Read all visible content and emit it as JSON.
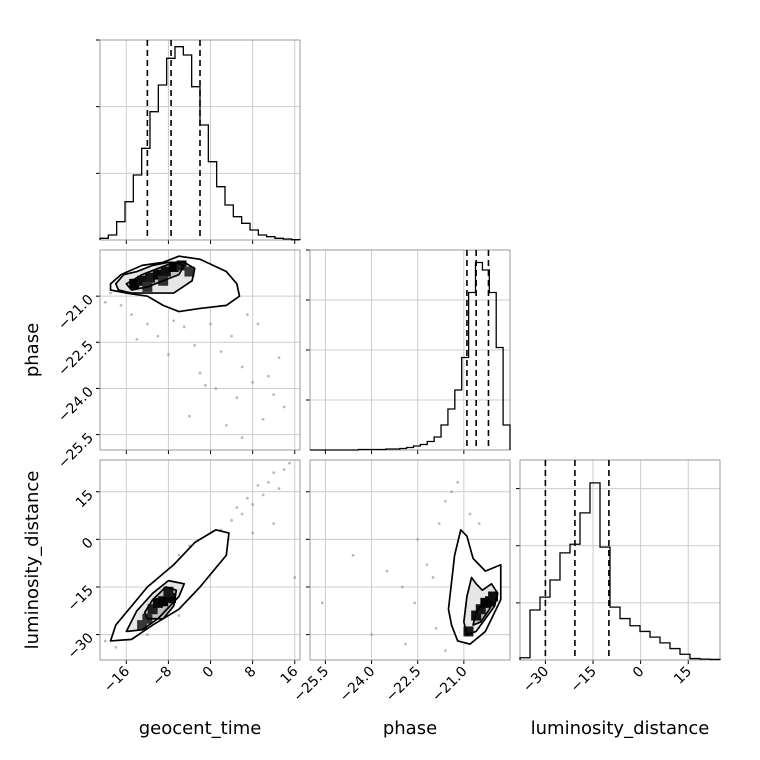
{
  "chart_data": {
    "type": "corner",
    "parameters": [
      "geocent_time",
      "phase",
      "luminosity_distance"
    ],
    "xlabels": [
      "geocent_time",
      "phase",
      "luminosity_distance"
    ],
    "ylabels": [
      "",
      "phase",
      "luminosity_distance"
    ],
    "ranges": {
      "geocent_time": [
        -21.0,
        17.0
      ],
      "phase": [
        -26.0,
        -19.5
      ],
      "luminosity_distance": [
        -38.0,
        25.0
      ]
    },
    "ticks": {
      "geocent_time": [
        -16,
        -8,
        0,
        8,
        16
      ],
      "phase": [
        -25.5,
        -24.0,
        -22.5,
        -21.0
      ],
      "luminosity_distance": [
        -30,
        -15,
        0,
        15
      ]
    },
    "tick_labels": {
      "geocent_time": [
        "−16",
        "−8",
        "0",
        "8",
        "16"
      ],
      "phase": [
        "−25.5",
        "−24.0",
        "−22.5",
        "−21.0"
      ],
      "luminosity_distance": [
        "−30",
        "−15",
        "0",
        "15"
      ]
    },
    "quantiles": {
      "geocent_time": [
        -12.0,
        -7.5,
        -2.0
      ],
      "phase": [
        -20.9,
        -20.6,
        -20.2
      ],
      "luminosity_distance": [
        -30.0,
        -20.7,
        -10.0
      ]
    },
    "histograms": [
      {
        "parameter": "geocent_time",
        "counts": [
          0.5,
          1.5,
          5.5,
          11.5,
          19.5,
          27.5,
          38.5,
          46.5,
          54.5,
          58.0,
          55.5,
          46.0,
          34.5,
          23.5,
          16.0,
          10.5,
          7.0,
          5.0,
          3.0,
          1.5,
          1.0,
          0.5,
          0.3,
          0.1
        ],
        "ylim": [
          0,
          60
        ],
        "yticks": [
          20,
          40,
          60
        ]
      },
      {
        "parameter": "phase",
        "counts": [
          0.0,
          0.0,
          0.0,
          0.0,
          0.0,
          0.0,
          0.0,
          0.1,
          0.1,
          0.1,
          0.1,
          0.2,
          0.2,
          0.3,
          0.5,
          0.8,
          1.1,
          1.7,
          2.6,
          5.0,
          8.2,
          12.0,
          18.5,
          31.5,
          37.5,
          36.0,
          31.5,
          20.5,
          5.0
        ],
        "ylim": [
          0,
          40
        ],
        "yticks": [
          10,
          20,
          30,
          40
        ]
      },
      {
        "parameter": "luminosity_distance",
        "counts": [
          0.8,
          17.5,
          22.0,
          28.0,
          37.5,
          40.5,
          51.5,
          62.0,
          39.5,
          18.5,
          14.5,
          12.0,
          10.0,
          8.0,
          6.0,
          4.0,
          2.0,
          0.5,
          0.3,
          0.2
        ],
        "ylim": [
          0,
          70
        ],
        "yticks": [
          20,
          40,
          60
        ]
      }
    ],
    "contours": [
      {
        "x": "geocent_time",
        "y": "phase",
        "levels": [
          [
            [
              -19.0,
              -20.6
            ],
            [
              -17.0,
              -20.3
            ],
            [
              -13.0,
              -20.0
            ],
            [
              -9.0,
              -19.9
            ],
            [
              -6.0,
              -19.7
            ],
            [
              -2.0,
              -19.8
            ],
            [
              3.0,
              -20.2
            ],
            [
              5.0,
              -20.6
            ],
            [
              5.5,
              -21.0
            ],
            [
              3.0,
              -21.3
            ],
            [
              -2.0,
              -21.4
            ],
            [
              -6.0,
              -21.5
            ],
            [
              -9.0,
              -21.3
            ],
            [
              -12.0,
              -21.0
            ],
            [
              -16.0,
              -20.9
            ],
            [
              -19.0,
              -20.8
            ]
          ],
          [
            [
              -18.0,
              -20.6
            ],
            [
              -16.5,
              -20.3
            ],
            [
              -14.0,
              -20.2
            ],
            [
              -11.0,
              -20.0
            ],
            [
              -8.0,
              -19.9
            ],
            [
              -5.0,
              -19.9
            ],
            [
              -3.0,
              -20.1
            ],
            [
              -3.5,
              -20.5
            ],
            [
              -7.0,
              -20.9
            ],
            [
              -11.0,
              -20.9
            ],
            [
              -15.0,
              -20.9
            ],
            [
              -17.5,
              -20.8
            ]
          ],
          [
            [
              -16.0,
              -20.6
            ],
            [
              -13.0,
              -20.3
            ],
            [
              -10.0,
              -20.1
            ],
            [
              -7.0,
              -19.9
            ],
            [
              -5.0,
              -20.0
            ],
            [
              -6.0,
              -20.3
            ],
            [
              -9.0,
              -20.5
            ],
            [
              -12.0,
              -20.7
            ],
            [
              -15.0,
              -20.8
            ]
          ]
        ],
        "hist": [
          [
            -14.5,
            -20.6,
            1.0
          ],
          [
            -13.0,
            -20.5,
            0.8
          ],
          [
            -11.5,
            -20.4,
            0.7
          ],
          [
            -10.0,
            -20.3,
            0.9
          ],
          [
            -8.5,
            -20.2,
            0.8
          ],
          [
            -7.0,
            -20.05,
            1.0
          ],
          [
            -5.5,
            -20.0,
            0.6
          ],
          [
            -12.0,
            -20.7,
            0.4
          ],
          [
            -9.0,
            -20.5,
            0.4
          ],
          [
            -4.0,
            -20.2,
            0.3
          ]
        ],
        "scatter": [
          [
            -15,
            -21.6
          ],
          [
            -12,
            -21.9
          ],
          [
            -10,
            -22.3
          ],
          [
            -7,
            -21.8
          ],
          [
            -5,
            -22.0
          ],
          [
            -3,
            -22.6
          ],
          [
            0,
            -21.9
          ],
          [
            2,
            -22.8
          ],
          [
            4,
            -22.3
          ],
          [
            6,
            -23.3
          ],
          [
            8,
            -23.8
          ],
          [
            10,
            -25.0
          ],
          [
            12,
            -24.2
          ],
          [
            13,
            -23.0
          ],
          [
            -2,
            -23.5
          ],
          [
            1,
            -24.0
          ],
          [
            5,
            -24.3
          ],
          [
            7,
            -21.6
          ],
          [
            9,
            -21.9
          ],
          [
            -17,
            -21.3
          ],
          [
            -14,
            -22.4
          ],
          [
            -8,
            -22.9
          ],
          [
            -1,
            -23.9
          ],
          [
            3,
            -25.2
          ],
          [
            11,
            -23.6
          ],
          [
            -19,
            -20.9
          ],
          [
            -20,
            -21.2
          ],
          [
            14,
            -24.6
          ],
          [
            -4,
            -24.9
          ],
          [
            6,
            -25.6
          ]
        ]
      },
      {
        "x": "geocent_time",
        "y": "luminosity_distance",
        "levels": [
          [
            [
              -19.0,
              -32.0
            ],
            [
              -15.0,
              -31.5
            ],
            [
              -11.0,
              -27.0
            ],
            [
              -6.0,
              -22.0
            ],
            [
              -2.0,
              -15.0
            ],
            [
              1.0,
              -9.0
            ],
            [
              3.0,
              -5.0
            ],
            [
              3.5,
              2.0
            ],
            [
              1.0,
              3.0
            ],
            [
              -3.0,
              -1.0
            ],
            [
              -7.0,
              -8.0
            ],
            [
              -12.0,
              -15.0
            ],
            [
              -15.0,
              -21.0
            ],
            [
              -18.0,
              -27.0
            ]
          ],
          [
            [
              -16.0,
              -29.0
            ],
            [
              -13.0,
              -28.5
            ],
            [
              -10.0,
              -25.0
            ],
            [
              -6.0,
              -18.0
            ],
            [
              -5.0,
              -14.0
            ],
            [
              -8.0,
              -13.0
            ],
            [
              -11.0,
              -17.0
            ],
            [
              -14.0,
              -22.5
            ]
          ],
          [
            [
              -12.0,
              -25.0
            ],
            [
              -9.0,
              -25.0
            ],
            [
              -7.0,
              -21.0
            ],
            [
              -6.5,
              -16.0
            ],
            [
              -8.5,
              -15.0
            ],
            [
              -11.0,
              -19.0
            ],
            [
              -12.5,
              -23.0
            ]
          ]
        ],
        "hist": [
          [
            -11.0,
            -22.0,
            0.6
          ],
          [
            -10.0,
            -20.0,
            0.9
          ],
          [
            -9.0,
            -19.5,
            1.0
          ],
          [
            -7.5,
            -18.5,
            0.9
          ],
          [
            -8.0,
            -16.5,
            0.7
          ],
          [
            -12.0,
            -25.0,
            0.4
          ],
          [
            -13.0,
            -27.0,
            0.3
          ]
        ],
        "scatter": [
          [
            -20,
            -32
          ],
          [
            -18,
            -34
          ],
          [
            -16,
            -28
          ],
          [
            -14,
            -24
          ],
          [
            -12,
            -30
          ],
          [
            -10,
            -14
          ],
          [
            -8,
            -10
          ],
          [
            -6,
            -5
          ],
          [
            -4,
            -2
          ],
          [
            -2,
            -6
          ],
          [
            0,
            -2
          ],
          [
            2,
            3
          ],
          [
            4,
            6
          ],
          [
            5,
            10
          ],
          [
            6,
            8
          ],
          [
            7,
            13
          ],
          [
            8,
            11
          ],
          [
            9,
            17
          ],
          [
            10,
            14
          ],
          [
            11,
            18
          ],
          [
            12,
            21
          ],
          [
            13,
            16
          ],
          [
            14,
            22
          ],
          [
            15,
            24
          ],
          [
            -6,
            -24
          ],
          [
            -3,
            -15
          ],
          [
            1,
            -8
          ],
          [
            3,
            -3
          ],
          [
            -17,
            -31
          ],
          [
            16,
            -12
          ],
          [
            12,
            5
          ],
          [
            8,
            2
          ]
        ]
      },
      {
        "x": "phase",
        "y": "luminosity_distance",
        "levels": [
          [
            [
              -21.5,
              -22.0
            ],
            [
              -21.3,
              -5.0
            ],
            [
              -21.1,
              3.0
            ],
            [
              -20.9,
              1.0
            ],
            [
              -20.7,
              -6.0
            ],
            [
              -20.5,
              -8.0
            ],
            [
              -20.3,
              -10.0
            ],
            [
              -19.8,
              -8.0
            ],
            [
              -19.8,
              -19.0
            ],
            [
              -20.1,
              -25.0
            ],
            [
              -20.3,
              -29.0
            ],
            [
              -20.8,
              -33.0
            ],
            [
              -21.2,
              -32.0
            ],
            [
              -21.4,
              -27.0
            ]
          ],
          [
            [
              -21.0,
              -26.0
            ],
            [
              -20.9,
              -18.0
            ],
            [
              -20.75,
              -12.0
            ],
            [
              -20.6,
              -14.0
            ],
            [
              -20.4,
              -16.0
            ],
            [
              -20.1,
              -14.0
            ],
            [
              -19.9,
              -17.0
            ],
            [
              -20.0,
              -21.0
            ],
            [
              -20.3,
              -25.0
            ],
            [
              -20.6,
              -29.0
            ],
            [
              -20.9,
              -30.0
            ]
          ],
          [
            [
              -20.7,
              -27.0
            ],
            [
              -20.6,
              -23.0
            ],
            [
              -20.45,
              -21.0
            ],
            [
              -20.2,
              -19.0
            ],
            [
              -20.05,
              -20.0
            ],
            [
              -20.2,
              -22.5
            ],
            [
              -20.45,
              -26.0
            ]
          ]
        ],
        "hist": [
          [
            -20.85,
            -29.0,
            0.7
          ],
          [
            -20.6,
            -24.0,
            0.8
          ],
          [
            -20.45,
            -22.0,
            0.7
          ],
          [
            -20.3,
            -20.0,
            1.0
          ],
          [
            -20.15,
            -19.5,
            1.0
          ],
          [
            -20.05,
            -18.0,
            0.8
          ]
        ],
        "scatter": [
          [
            -22.6,
            -20
          ],
          [
            -22.2,
            -8
          ],
          [
            -21.8,
            5
          ],
          [
            -21.9,
            -28
          ],
          [
            -21.6,
            12
          ],
          [
            -21.4,
            15
          ],
          [
            -21.2,
            18
          ],
          [
            -23.0,
            -15
          ],
          [
            -24.6,
            -5
          ],
          [
            -25.6,
            -20
          ],
          [
            -24.0,
            -30
          ],
          [
            -22.9,
            -33
          ],
          [
            -21.6,
            -35
          ],
          [
            -20.8,
            8
          ],
          [
            -20.5,
            5
          ],
          [
            -22.5,
            0
          ],
          [
            -23.5,
            -10
          ],
          [
            -22.0,
            -12
          ]
        ]
      }
    ]
  }
}
